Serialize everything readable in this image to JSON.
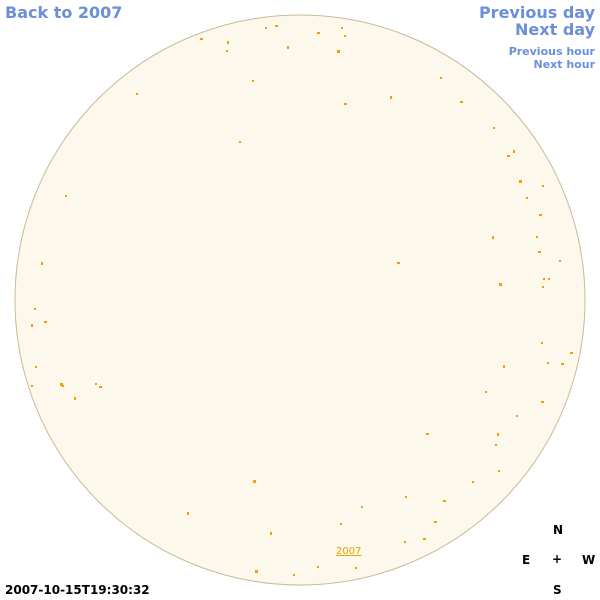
{
  "nav": {
    "back_label": "Back to 2007",
    "previous_day": "Previous day",
    "next_day": "Next day",
    "previous_hour": "Previous hour",
    "next_hour": "Next hour"
  },
  "timestamp": "2007-10-15T19:30:32",
  "compass": {
    "n": "N",
    "e": "E",
    "center": "+",
    "w": "W",
    "s": "S"
  },
  "sky": {
    "disk_color": "#fdf8ec",
    "border_color": "#c9b99a",
    "object_color": "#f0a000"
  },
  "year_label": "2007"
}
